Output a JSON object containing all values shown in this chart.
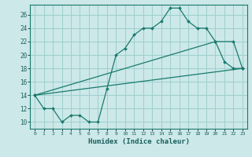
{
  "xlabel": "Humidex (Indice chaleur)",
  "ylabel": "",
  "xlim": [
    -0.5,
    23.5
  ],
  "ylim": [
    9.0,
    27.5
  ],
  "yticks": [
    10,
    12,
    14,
    16,
    18,
    20,
    22,
    24,
    26
  ],
  "xticks": [
    0,
    1,
    2,
    3,
    4,
    5,
    6,
    7,
    8,
    9,
    10,
    11,
    12,
    13,
    14,
    15,
    16,
    17,
    18,
    19,
    20,
    21,
    22,
    23
  ],
  "bg_color": "#cce8e8",
  "grid_color": "#9ecfcf",
  "line_color": "#1a7a6e",
  "lines": [
    {
      "x": [
        0,
        1,
        2,
        3,
        4,
        5,
        6,
        7,
        8,
        9,
        10,
        11,
        12,
        13,
        14,
        15,
        16,
        17,
        18,
        19,
        20,
        21,
        22,
        23
      ],
      "y": [
        14,
        12,
        12,
        10,
        11,
        11,
        10,
        10,
        15,
        20,
        21,
        23,
        24,
        24,
        25,
        27,
        27,
        25,
        24,
        24,
        22,
        19,
        18,
        18
      ]
    },
    {
      "x": [
        0,
        20,
        22,
        23
      ],
      "y": [
        14,
        22,
        22,
        18
      ]
    },
    {
      "x": [
        0,
        23
      ],
      "y": [
        14,
        18
      ]
    }
  ]
}
